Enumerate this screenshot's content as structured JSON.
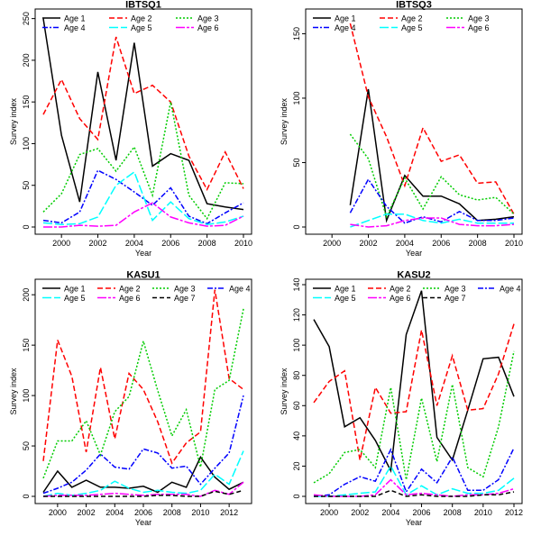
{
  "palette": {
    "age1": "#000000",
    "age2": "#ff0000",
    "age3": "#00cc00",
    "age4": "#0000ff",
    "age5": "#00ffff",
    "age6": "#ff00ff",
    "age7": "#000000"
  },
  "chart_data": [
    {
      "type": "line",
      "title": "IBTSQ1",
      "xlabel": "Year",
      "ylabel": "Survey index",
      "xlim": [
        1999,
        2010
      ],
      "ylim": [
        0,
        255
      ],
      "xticks": [
        2000,
        2002,
        2004,
        2006,
        2008,
        2010
      ],
      "yticks": [
        0,
        50,
        100,
        150,
        200,
        250
      ],
      "legend_cols": 3,
      "x": [
        1999,
        2000,
        2001,
        2002,
        2003,
        2004,
        2005,
        2006,
        2007,
        2008,
        2009,
        2010
      ],
      "series": [
        {
          "name": "Age 1",
          "values": [
            250,
            110,
            30,
            186,
            80,
            221,
            73,
            88,
            80,
            28,
            24,
            21
          ]
        },
        {
          "name": "Age 2",
          "values": [
            135,
            177,
            130,
            105,
            228,
            160,
            170,
            150,
            85,
            45,
            90,
            46
          ]
        },
        {
          "name": "Age 3",
          "values": [
            18,
            40,
            87,
            94,
            67,
            96,
            38,
            150,
            38,
            10,
            53,
            52
          ]
        },
        {
          "name": "Age 4",
          "values": [
            8,
            5,
            18,
            68,
            57,
            42,
            26,
            47,
            13,
            4,
            17,
            29
          ]
        },
        {
          "name": "Age 5",
          "values": [
            5,
            3,
            4,
            12,
            50,
            66,
            8,
            30,
            10,
            3,
            6,
            13
          ]
        },
        {
          "name": "Age 6",
          "values": [
            0,
            0,
            2,
            1,
            2,
            18,
            29,
            12,
            5,
            1,
            2,
            13
          ]
        }
      ]
    },
    {
      "type": "line",
      "title": "IBTSQ3",
      "xlabel": "Year",
      "ylabel": "Survey index",
      "xlim": [
        1999,
        2010
      ],
      "ylim": [
        0,
        165
      ],
      "xticks": [
        2000,
        2002,
        2004,
        2006,
        2008,
        2010
      ],
      "yticks": [
        0,
        50,
        100,
        150
      ],
      "legend_cols": 3,
      "x": [
        2001,
        2002,
        2003,
        2004,
        2005,
        2006,
        2007,
        2008,
        2009,
        2010
      ],
      "series": [
        {
          "name": "Age 1",
          "values": [
            17,
            107,
            5,
            40,
            24,
            24,
            18,
            5,
            6,
            8
          ]
        },
        {
          "name": "Age 2",
          "values": [
            158,
            101,
            70,
            32,
            77,
            51,
            56,
            34,
            35,
            10
          ]
        },
        {
          "name": "Age 3",
          "values": [
            72,
            53,
            8,
            38,
            14,
            39,
            25,
            21,
            23,
            10
          ]
        },
        {
          "name": "Age 4",
          "values": [
            11,
            37,
            16,
            3,
            8,
            4,
            12,
            5,
            5,
            7
          ]
        },
        {
          "name": "Age 5",
          "values": [
            0,
            5,
            10,
            10,
            5,
            3,
            6,
            3,
            3,
            3
          ]
        },
        {
          "name": "Age 6",
          "values": [
            2,
            0,
            1,
            5,
            7,
            7,
            2,
            1,
            1,
            2
          ]
        }
      ]
    },
    {
      "type": "line",
      "title": "KASU1",
      "xlabel": "Year",
      "ylabel": "Survey index",
      "xlim": [
        1999,
        2013
      ],
      "ylim": [
        0,
        210
      ],
      "xticks": [
        2000,
        2002,
        2004,
        2006,
        2008,
        2010,
        2012
      ],
      "yticks": [
        0,
        50,
        100,
        150,
        200
      ],
      "legend_cols": 4,
      "x": [
        1999,
        2000,
        2001,
        2002,
        2003,
        2004,
        2005,
        2006,
        2007,
        2008,
        2009,
        2010,
        2011,
        2012,
        2013
      ],
      "series": [
        {
          "name": "Age 1",
          "values": [
            4,
            25,
            9,
            16,
            9,
            9,
            8,
            10,
            4,
            14,
            9,
            39,
            19,
            7,
            14
          ]
        },
        {
          "name": "Age 2",
          "values": [
            35,
            155,
            119,
            44,
            128,
            57,
            122,
            106,
            74,
            33,
            53,
            64,
            205,
            117,
            106
          ]
        },
        {
          "name": "Age 3",
          "values": [
            18,
            55,
            55,
            75,
            41,
            84,
            99,
            154,
            105,
            60,
            86,
            29,
            106,
            115,
            186
          ]
        },
        {
          "name": "Age 4",
          "values": [
            3,
            8,
            14,
            26,
            42,
            29,
            27,
            47,
            43,
            28,
            30,
            12,
            28,
            43,
            100
          ]
        },
        {
          "name": "Age 5",
          "values": [
            0,
            3,
            1,
            3,
            6,
            15,
            8,
            4,
            6,
            4,
            3,
            6,
            22,
            12,
            45
          ]
        },
        {
          "name": "Age 6",
          "values": [
            0,
            1,
            1,
            1,
            2,
            3,
            2,
            1,
            2,
            2,
            2,
            0,
            6,
            2,
            14
          ]
        },
        {
          "name": "Age 7",
          "values": [
            0,
            0,
            0,
            0,
            0,
            0,
            0,
            0,
            1,
            1,
            0,
            0,
            5,
            2,
            6
          ]
        }
      ]
    },
    {
      "type": "line",
      "title": "KASU2",
      "xlabel": "Year",
      "ylabel": "Survey index",
      "xlim": [
        1999,
        2012
      ],
      "ylim": [
        0,
        140
      ],
      "xticks": [
        2000,
        2002,
        2004,
        2006,
        2008,
        2010,
        2012
      ],
      "yticks": [
        0,
        20,
        40,
        60,
        80,
        100,
        120,
        140
      ],
      "legend_cols": 4,
      "x": [
        1999,
        2000,
        2001,
        2002,
        2003,
        2004,
        2005,
        2006,
        2007,
        2008,
        2009,
        2010,
        2011,
        2012
      ],
      "series": [
        {
          "name": "Age 1",
          "values": [
            117,
            99,
            46,
            52,
            37,
            17,
            107,
            136,
            39,
            24,
            57,
            91,
            92,
            66
          ]
        },
        {
          "name": "Age 2",
          "values": [
            62,
            76,
            83,
            24,
            72,
            55,
            56,
            110,
            60,
            93,
            57,
            58,
            81,
            114
          ]
        },
        {
          "name": "Age 3",
          "values": [
            9,
            15,
            29,
            31,
            19,
            72,
            11,
            65,
            23,
            74,
            19,
            13,
            46,
            96
          ]
        },
        {
          "name": "Age 4",
          "values": [
            0,
            1,
            8,
            13,
            10,
            31,
            3,
            18,
            9,
            26,
            4,
            4,
            11,
            32
          ]
        },
        {
          "name": "Age 5",
          "values": [
            0,
            0,
            1,
            2,
            3,
            20,
            1,
            7,
            1,
            5,
            2,
            2,
            4,
            12
          ]
        },
        {
          "name": "Age 6",
          "values": [
            1,
            0,
            0,
            0,
            1,
            11,
            1,
            2,
            1,
            0,
            1,
            1,
            2,
            5
          ]
        },
        {
          "name": "Age 7",
          "values": [
            0,
            0,
            0,
            0,
            0,
            4,
            0,
            1,
            0,
            0,
            0,
            1,
            1,
            3
          ]
        }
      ]
    }
  ]
}
